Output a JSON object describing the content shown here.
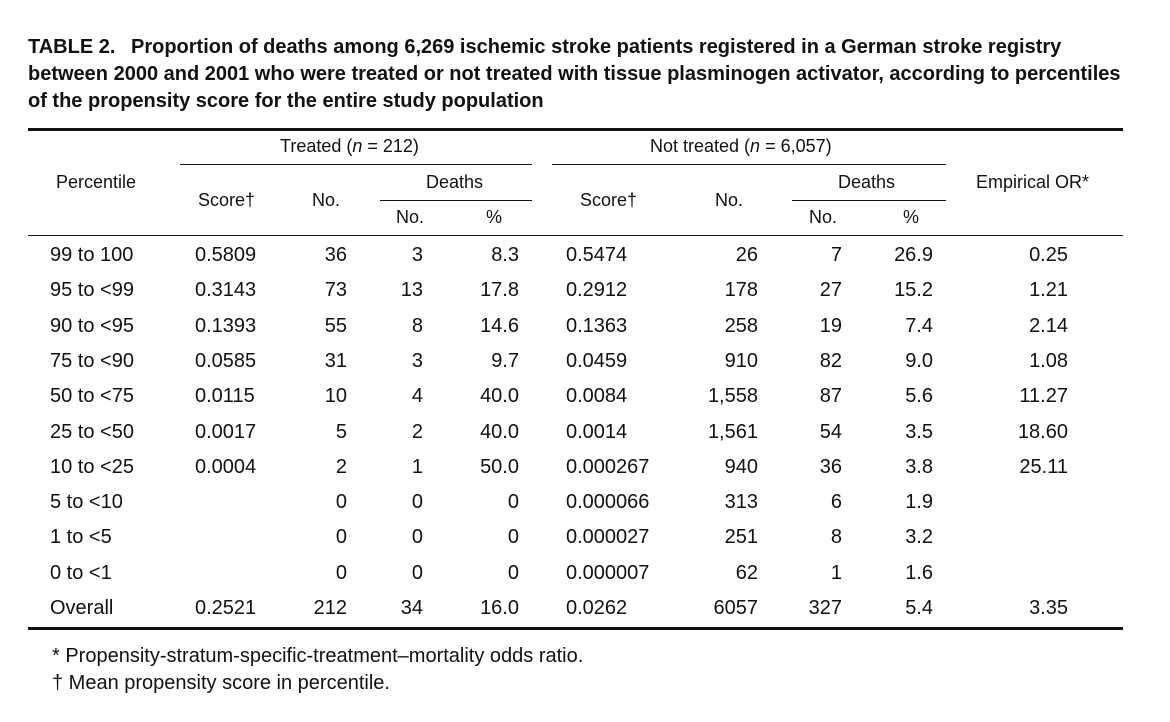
{
  "caption": {
    "label": "TABLE 2.",
    "text": "Proportion of deaths among 6,269 ischemic stroke patients registered in a German stroke registry between 2000 and 2001 who were treated or not treated with tissue plasminogen activator, according to percentiles of the propensity score for the entire study population"
  },
  "header": {
    "percentile": "Percentile",
    "treated_prefix": "Treated (",
    "treated_n": "n",
    "treated_suffix": " = 212)",
    "not_treated_prefix": "Not treated (",
    "not_treated_n": "n",
    "not_treated_suffix": " = 6,057)",
    "score": "Score†",
    "no": "No.",
    "deaths": "Deaths",
    "deaths_no": "No.",
    "deaths_pct": "%",
    "empirical_or": "Empirical OR*"
  },
  "rows": [
    {
      "percentile": "99 to 100",
      "t_score": "0.5809",
      "t_no": "36",
      "t_deaths": "3",
      "t_pct": "8.3",
      "n_score": "0.5474",
      "n_no": "26",
      "n_deaths": "7",
      "n_pct": "26.9",
      "or": "0.25"
    },
    {
      "percentile": "95 to <99",
      "t_score": "0.3143",
      "t_no": "73",
      "t_deaths": "13",
      "t_pct": "17.8",
      "n_score": "0.2912",
      "n_no": "178",
      "n_deaths": "27",
      "n_pct": "15.2",
      "or": "1.21"
    },
    {
      "percentile": "90 to <95",
      "t_score": "0.1393",
      "t_no": "55",
      "t_deaths": "8",
      "t_pct": "14.6",
      "n_score": "0.1363",
      "n_no": "258",
      "n_deaths": "19",
      "n_pct": "7.4",
      "or": "2.14"
    },
    {
      "percentile": "75 to <90",
      "t_score": "0.0585",
      "t_no": "31",
      "t_deaths": "3",
      "t_pct": "9.7",
      "n_score": "0.0459",
      "n_no": "910",
      "n_deaths": "82",
      "n_pct": "9.0",
      "or": "1.08"
    },
    {
      "percentile": "50 to <75",
      "t_score": "0.0115",
      "t_no": "10",
      "t_deaths": "4",
      "t_pct": "40.0",
      "n_score": "0.0084",
      "n_no": "1,558",
      "n_deaths": "87",
      "n_pct": "5.6",
      "or": "11.27"
    },
    {
      "percentile": "25 to <50",
      "t_score": "0.0017",
      "t_no": "5",
      "t_deaths": "2",
      "t_pct": "40.0",
      "n_score": "0.0014",
      "n_no": "1,561",
      "n_deaths": "54",
      "n_pct": "3.5",
      "or": "18.60"
    },
    {
      "percentile": "10 to <25",
      "t_score": "0.0004",
      "t_no": "2",
      "t_deaths": "1",
      "t_pct": "50.0",
      "n_score": "0.000267",
      "n_no": "940",
      "n_deaths": "36",
      "n_pct": "3.8",
      "or": "25.11"
    },
    {
      "percentile": "5 to <10",
      "t_score": "",
      "t_no": "0",
      "t_deaths": "0",
      "t_pct": "0",
      "n_score": "0.000066",
      "n_no": "313",
      "n_deaths": "6",
      "n_pct": "1.9",
      "or": ""
    },
    {
      "percentile": "1 to <5",
      "t_score": "",
      "t_no": "0",
      "t_deaths": "0",
      "t_pct": "0",
      "n_score": "0.000027",
      "n_no": "251",
      "n_deaths": "8",
      "n_pct": "3.2",
      "or": ""
    },
    {
      "percentile": "0 to <1",
      "t_score": "",
      "t_no": "0",
      "t_deaths": "0",
      "t_pct": "0",
      "n_score": "0.000007",
      "n_no": "62",
      "n_deaths": "1",
      "n_pct": "1.6",
      "or": ""
    },
    {
      "percentile": "Overall",
      "t_score": "0.2521",
      "t_no": "212",
      "t_deaths": "34",
      "t_pct": "16.0",
      "n_score": "0.0262",
      "n_no": "6057",
      "n_deaths": "327",
      "n_pct": "5.4",
      "or": "3.35"
    }
  ],
  "footnotes": [
    "* Propensity-stratum-specific-treatment–mortality odds ratio.",
    "† Mean propensity score in percentile."
  ]
}
